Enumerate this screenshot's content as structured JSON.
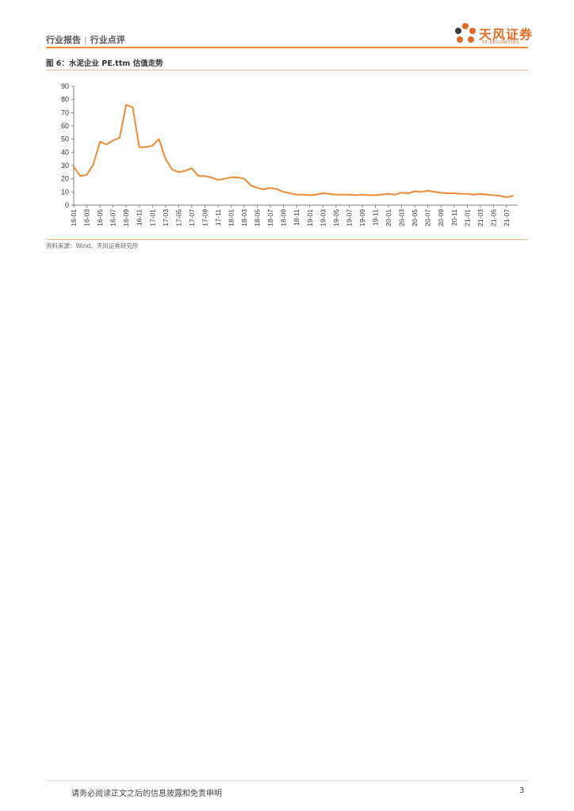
{
  "header": {
    "report_type": "行业报告",
    "separator": "|",
    "report_subtype": "行业点评",
    "logo_cn": "天风证券",
    "logo_en": "TF SECURITIES",
    "logo_icon": "tf-flower-logo-icon",
    "accent_color": "#ec8a35"
  },
  "figure": {
    "title": "图 6：水泥企业 PE.ttm 估值走势",
    "source": "资料来源：Wind、天风证券研究所"
  },
  "chart_data": {
    "type": "line",
    "title": "",
    "xlabel": "",
    "ylabel": "",
    "ylim": [
      0,
      90
    ],
    "yticks": [
      0,
      10,
      20,
      30,
      40,
      50,
      60,
      70,
      80,
      90
    ],
    "xticks": [
      "16-01",
      "16-03",
      "16-05",
      "16-07",
      "16-09",
      "16-11",
      "17-01",
      "17-03",
      "17-05",
      "17-07",
      "17-09",
      "17-11",
      "18-01",
      "18-03",
      "18-05",
      "18-07",
      "18-09",
      "18-11",
      "19-01",
      "19-03",
      "19-05",
      "19-07",
      "19-09",
      "19-11",
      "20-01",
      "20-03",
      "20-05",
      "20-07",
      "20-09",
      "20-11",
      "21-01",
      "21-03",
      "21-05",
      "21-07"
    ],
    "grid": false,
    "legend": "none",
    "line_color": "#ec8a35",
    "series": [
      {
        "x": [
          "16-01",
          "16-02",
          "16-03",
          "16-04",
          "16-05",
          "16-06",
          "16-07",
          "16-08",
          "16-09",
          "16-10",
          "16-11",
          "16-12",
          "17-01",
          "17-02",
          "17-03",
          "17-04",
          "17-05",
          "17-06",
          "17-07",
          "17-08",
          "17-09",
          "17-10",
          "17-11",
          "17-12",
          "18-01",
          "18-02",
          "18-03",
          "18-04",
          "18-05",
          "18-06",
          "18-07",
          "18-08",
          "18-09",
          "18-10",
          "18-11",
          "18-12",
          "19-01",
          "19-02",
          "19-03",
          "19-04",
          "19-05",
          "19-06",
          "19-07",
          "19-08",
          "19-09",
          "19-10",
          "19-11",
          "19-12",
          "20-01",
          "20-02",
          "20-03",
          "20-04",
          "20-05",
          "20-06",
          "20-07",
          "20-08",
          "20-09",
          "20-10",
          "20-11",
          "20-12",
          "21-01",
          "21-02",
          "21-03",
          "21-04",
          "21-05",
          "21-06",
          "21-07",
          "21-08"
        ],
        "values": [
          29,
          22,
          23,
          31,
          48,
          46,
          49,
          51,
          76,
          74,
          44,
          44,
          45,
          50,
          35,
          27,
          25,
          26,
          28,
          22,
          22,
          21,
          19,
          20,
          21,
          21,
          20,
          15,
          13,
          12,
          13,
          12,
          10,
          9,
          8,
          8,
          7.5,
          8,
          9,
          8.5,
          8,
          8,
          8,
          7.5,
          8,
          7.5,
          7.5,
          8,
          8.5,
          8,
          9.5,
          9,
          10.5,
          10,
          11,
          10,
          9.5,
          9,
          9,
          8.5,
          8.5,
          8,
          8.5,
          8,
          7.5,
          7,
          6,
          7
        ]
      }
    ]
  },
  "footer": {
    "disclaimer": "请务必阅读正文之后的信息披露和免责申明",
    "page_number": "3"
  }
}
